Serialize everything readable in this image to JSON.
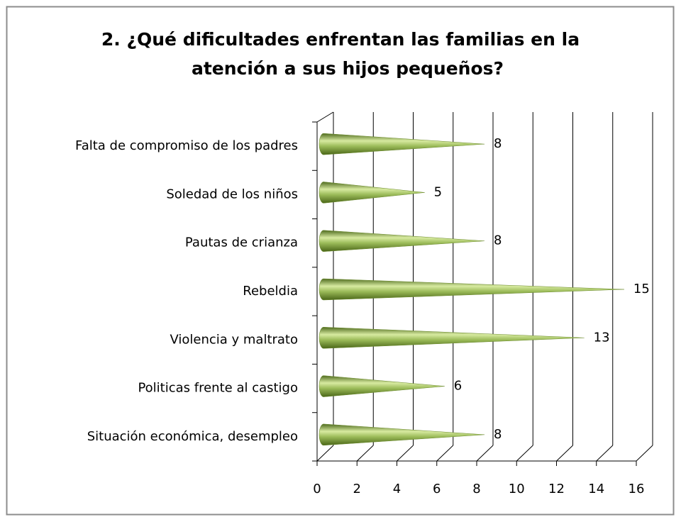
{
  "chart_data": {
    "type": "bar",
    "title": [
      "2.     ¿Qué dificultades  enfrentan las familias en la",
      "atención a  sus hijos pequeños?"
    ],
    "categories": [
      "Falta de compromiso de los padres",
      "Soledad de los niños",
      "Pautas de crianza",
      "Rebeldia",
      "Violencia y maltrato",
      "Politicas frente al castigo",
      "Situación económica, desempleo"
    ],
    "values": [
      8,
      5,
      8,
      15,
      13,
      6,
      8
    ],
    "color": "#9bbb59",
    "xlim": [
      0,
      16
    ],
    "xticks": [
      0,
      2,
      4,
      6,
      8,
      10,
      12,
      14,
      16
    ],
    "grid": true
  }
}
